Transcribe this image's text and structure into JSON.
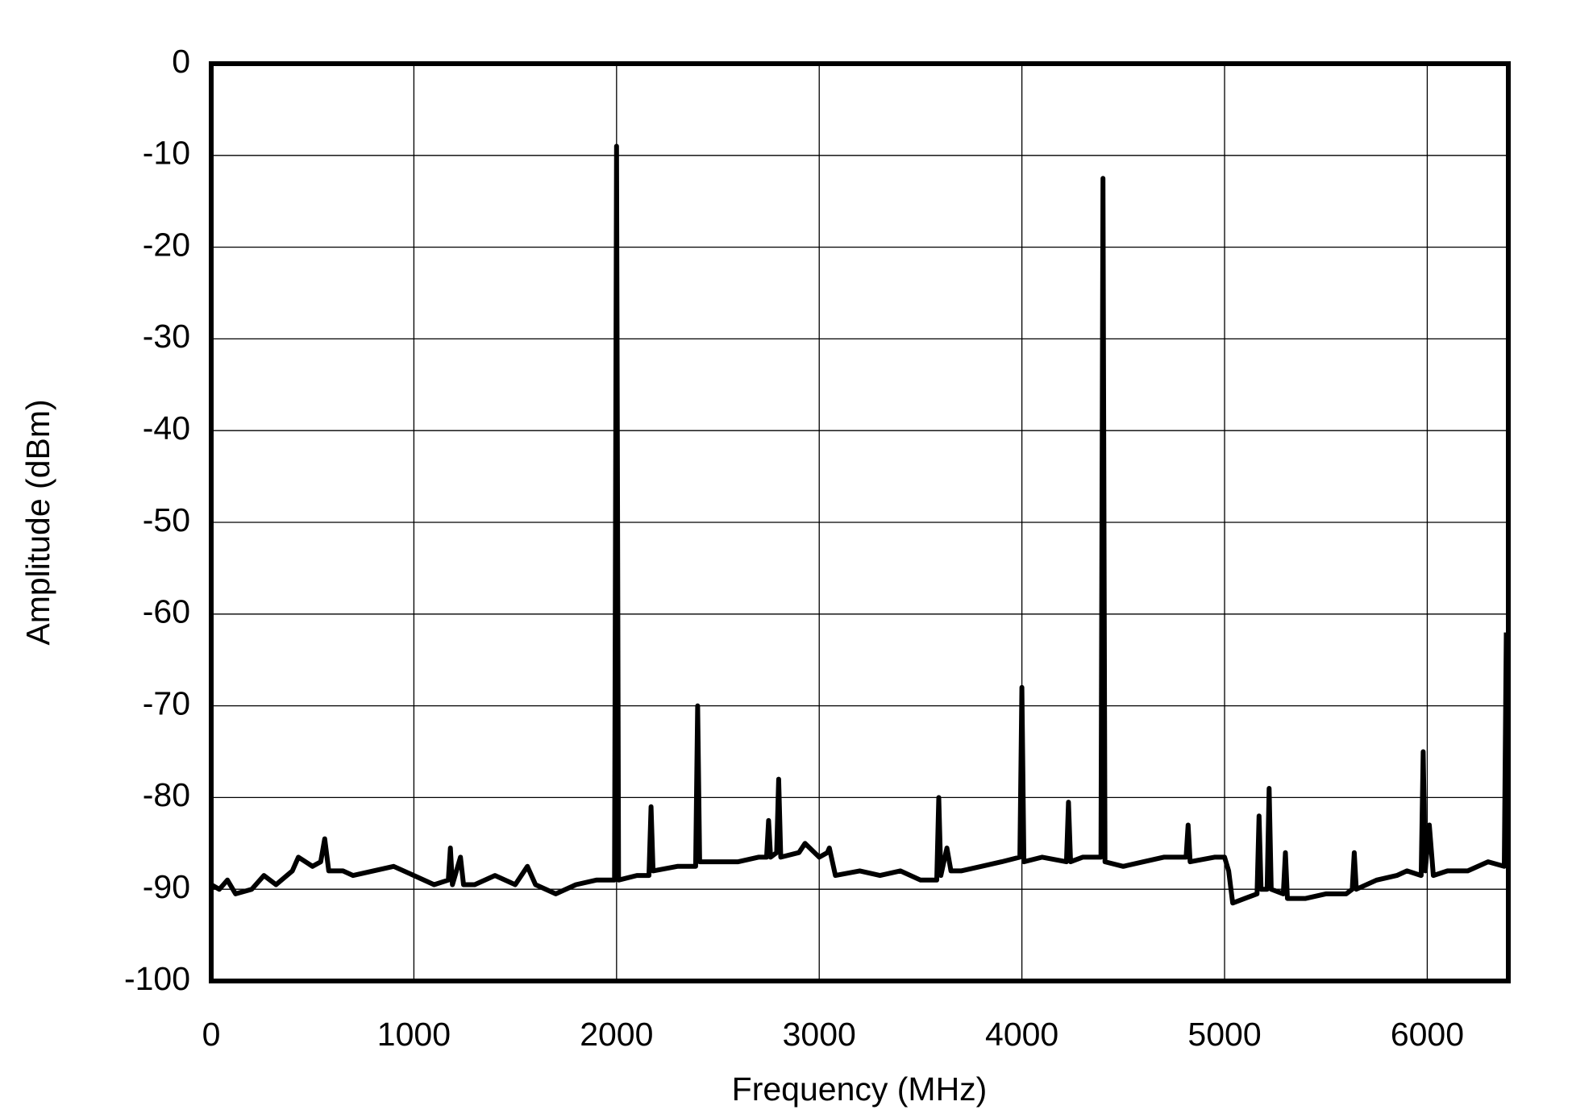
{
  "chart_data": {
    "type": "line",
    "xlabel": "Frequency (MHz)",
    "ylabel": "Amplitude (dBm)",
    "x": [
      0,
      40,
      80,
      120,
      200,
      260,
      320,
      400,
      430,
      500,
      540,
      560,
      580,
      650,
      700,
      800,
      900,
      1000,
      1100,
      1170,
      1180,
      1190,
      1230,
      1245,
      1300,
      1400,
      1500,
      1560,
      1600,
      1700,
      1800,
      1900,
      1990,
      2000,
      2010,
      2100,
      2160,
      2170,
      2180,
      2300,
      2390,
      2400,
      2410,
      2500,
      2600,
      2700,
      2740,
      2750,
      2760,
      2790,
      2800,
      2810,
      2900,
      2930,
      3000,
      3040,
      3050,
      3080,
      3200,
      3300,
      3400,
      3500,
      3580,
      3590,
      3600,
      3630,
      3650,
      3700,
      3800,
      3900,
      3990,
      4000,
      4010,
      4100,
      4220,
      4230,
      4240,
      4300,
      4390,
      4400,
      4410,
      4500,
      4600,
      4700,
      4810,
      4820,
      4830,
      4950,
      5000,
      5020,
      5040,
      5100,
      5160,
      5170,
      5180,
      5210,
      5220,
      5230,
      5290,
      5300,
      5310,
      5400,
      5500,
      5600,
      5630,
      5640,
      5650,
      5750,
      5850,
      5900,
      5970,
      5980,
      5990,
      6010,
      6030,
      6100,
      6200,
      6300,
      6380,
      6390
    ],
    "series": [
      {
        "color": "#000000",
        "values": [
          -89.5,
          -90,
          -89,
          -90.5,
          -90,
          -88.5,
          -89.5,
          -88,
          -86.5,
          -87.5,
          -87,
          -84.5,
          -88,
          -88,
          -88.5,
          -88,
          -87.5,
          -88.5,
          -89.5,
          -89,
          -85.5,
          -89.5,
          -86.5,
          -89.5,
          -89.5,
          -88.5,
          -89.5,
          -87.5,
          -89.5,
          -90.5,
          -89.5,
          -89,
          -89,
          -9,
          -89,
          -88.5,
          -88.5,
          -81,
          -88,
          -87.5,
          -87.5,
          -70,
          -87,
          -87,
          -87,
          -86.5,
          -86.5,
          -82.5,
          -86.5,
          -86,
          -78,
          -86.5,
          -86,
          -85,
          -86.5,
          -86,
          -85.5,
          -88.5,
          -88,
          -88.5,
          -88,
          -89,
          -89,
          -80,
          -88.5,
          -85.5,
          -88,
          -88,
          -87.5,
          -87,
          -86.5,
          -68,
          -87,
          -86.5,
          -87,
          -80.5,
          -87,
          -86.5,
          -86.5,
          -12.5,
          -87,
          -87.5,
          -87,
          -86.5,
          -86.5,
          -83,
          -87,
          -86.5,
          -86.5,
          -88,
          -91.5,
          -91,
          -90.5,
          -82,
          -90,
          -90,
          -79,
          -90,
          -90.5,
          -86,
          -91,
          -91,
          -90.5,
          -90.5,
          -90,
          -86,
          -90,
          -89,
          -88.5,
          -88,
          -88.5,
          -75,
          -88,
          -83,
          -88.5,
          -88,
          -88,
          -87,
          -87.5,
          -62
        ]
      }
    ],
    "xlim": [
      0,
      6400
    ],
    "xticks": [
      0,
      1000,
      2000,
      3000,
      4000,
      5000,
      6000
    ],
    "ylim": [
      -100,
      0
    ],
    "yticks": [
      0,
      -10,
      -20,
      -30,
      -40,
      -50,
      -60,
      -70,
      -80,
      -90,
      -100
    ],
    "grid": true
  }
}
